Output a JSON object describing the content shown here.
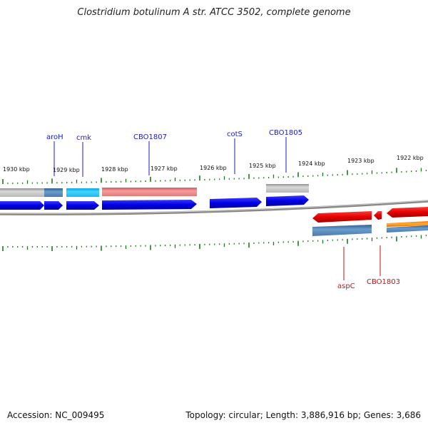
{
  "title": "Clostridium botulinum A str. ATCC 3502, complete genome",
  "accession": "Accession: NC_009495",
  "summary": "Topology: circular; Length: 3,886,916 bp; Genes: 3,686",
  "ruler_labels": [
    "1930 kbp",
    "1929 kbp",
    "1928 kbp",
    "1927 kbp",
    "1926 kbp",
    "1925 kbp",
    "1924 kbp",
    "1923 kbp",
    "1922 kbp"
  ],
  "forward_genes": [
    "aroH",
    "cmk",
    "CBO1807",
    "cotS",
    "CBO1805"
  ],
  "reverse_genes": [
    "aspC",
    "CBO1803"
  ],
  "colors": {
    "forward_cds": "#0000ee",
    "forward_label": "#1a1acc",
    "reverse_cds": "#ee0000",
    "reverse_label": "#cc1111",
    "tick": "#1a7a1a",
    "backbone": "#888888"
  }
}
